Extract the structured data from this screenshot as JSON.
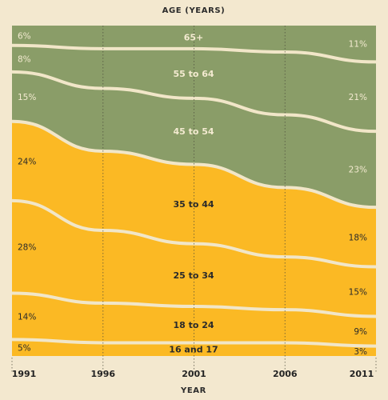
{
  "chart_data": {
    "type": "area",
    "title": "AGE (YEARS)",
    "xlabel": "YEAR",
    "x": [
      1991,
      1996,
      2001,
      2006,
      2011
    ],
    "x_tick_labels": [
      "1991",
      "1996",
      "2001",
      "2006",
      "2011"
    ],
    "ylim": [
      0,
      100
    ],
    "stacking": "percent",
    "series": [
      {
        "name": "16 and 17",
        "values": [
          5,
          4,
          4,
          4,
          3
        ],
        "color": "#fbb924",
        "label_color": "#2a2a2a",
        "start_label": "5%",
        "end_label": "3%"
      },
      {
        "name": "18 to 24",
        "values": [
          14,
          12,
          11,
          10,
          9
        ],
        "color": "#fbb924",
        "label_color": "#2a2a2a",
        "start_label": "14%",
        "end_label": "9%"
      },
      {
        "name": "25 to 34",
        "values": [
          28,
          22,
          19,
          16,
          15
        ],
        "color": "#fbb924",
        "label_color": "#2a2a2a",
        "start_label": "28%",
        "end_label": "15%"
      },
      {
        "name": "35 to 44",
        "values": [
          24,
          24,
          24,
          21,
          18
        ],
        "color": "#fbb924",
        "label_color": "#2a2a2a",
        "start_label": "24%",
        "end_label": "18%"
      },
      {
        "name": "45 to 54",
        "values": [
          15,
          19,
          20,
          22,
          23
        ],
        "color": "#8a9d68",
        "label_color": "#f3ead0",
        "start_label": "15%",
        "end_label": "23%"
      },
      {
        "name": "55 to 64",
        "values": [
          8,
          12,
          15,
          19,
          21
        ],
        "color": "#8a9d68",
        "label_color": "#f3ead0",
        "start_label": "8%",
        "end_label": "21%"
      },
      {
        "name": "65+",
        "values": [
          6,
          7,
          7,
          8,
          11
        ],
        "color": "#8a9d68",
        "label_color": "#f3ead0",
        "start_label": "6%",
        "end_label": "11%"
      }
    ],
    "gridlines": "vertical-dotted",
    "legend": "none"
  },
  "colors": {
    "background": "#f3e8cf",
    "divider": "#f1e6c8",
    "gridline": "#4a4a3a",
    "text_dark": "#222222",
    "text_light": "#f3ead0"
  }
}
